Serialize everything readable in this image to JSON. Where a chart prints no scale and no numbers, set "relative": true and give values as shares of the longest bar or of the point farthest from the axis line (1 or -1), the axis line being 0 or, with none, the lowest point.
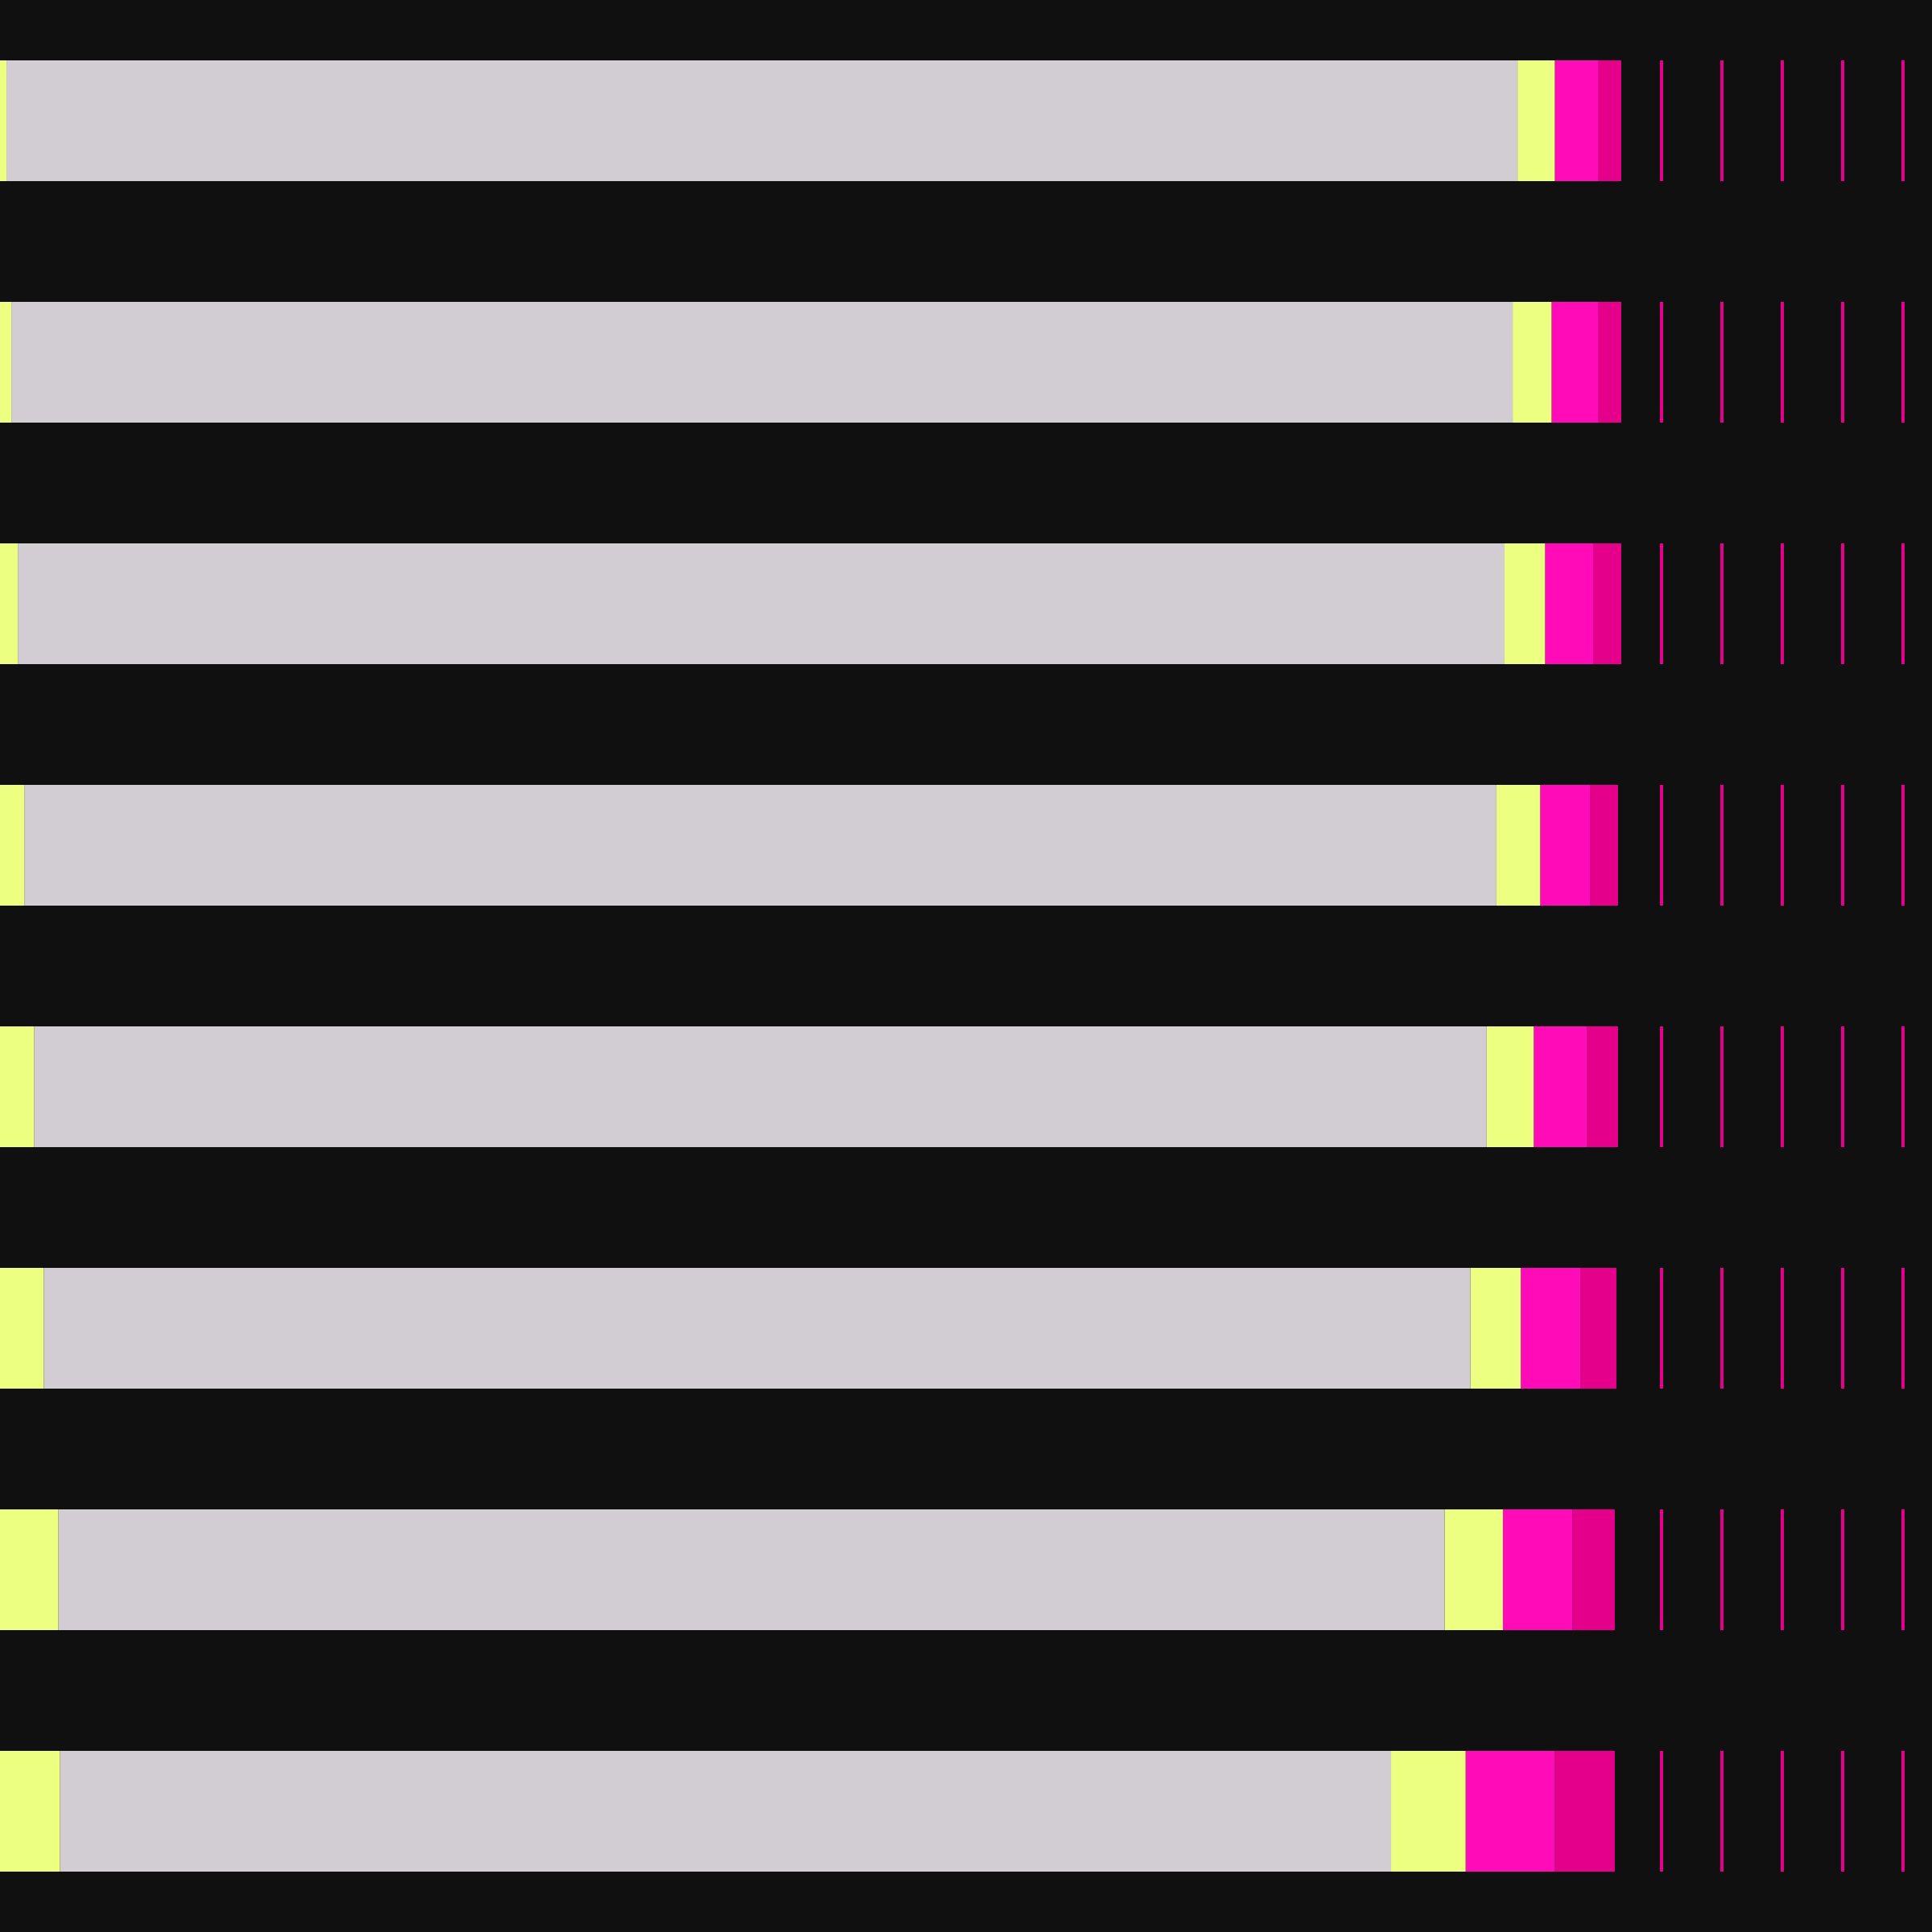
{
  "chart_data": {
    "type": "bar",
    "orientation": "horizontal",
    "stacked": true,
    "relative": true,
    "legend": false,
    "categories": [
      null,
      null,
      null,
      null,
      null,
      null,
      null,
      null
    ],
    "series": [
      {
        "color": "#ecff80",
        "values": [
          0.004,
          0.007,
          0.011,
          0.015,
          0.021,
          0.027,
          0.036,
          0.037
        ]
      },
      {
        "color": "#d2cdd3",
        "values": [
          0.932,
          0.926,
          0.917,
          0.908,
          0.896,
          0.88,
          0.855,
          0.821
        ]
      },
      {
        "color": "#ecff80",
        "values": [
          0.023,
          0.024,
          0.025,
          0.027,
          0.029,
          0.031,
          0.036,
          0.046
        ]
      },
      {
        "color": "#ff0cb8",
        "values": [
          0.027,
          0.029,
          0.03,
          0.031,
          0.033,
          0.037,
          0.043,
          0.055
        ]
      },
      {
        "color": "#e4008a",
        "values": [
          0.014,
          0.014,
          0.017,
          0.017,
          0.019,
          0.022,
          0.026,
          0.037
        ]
      }
    ]
  }
}
